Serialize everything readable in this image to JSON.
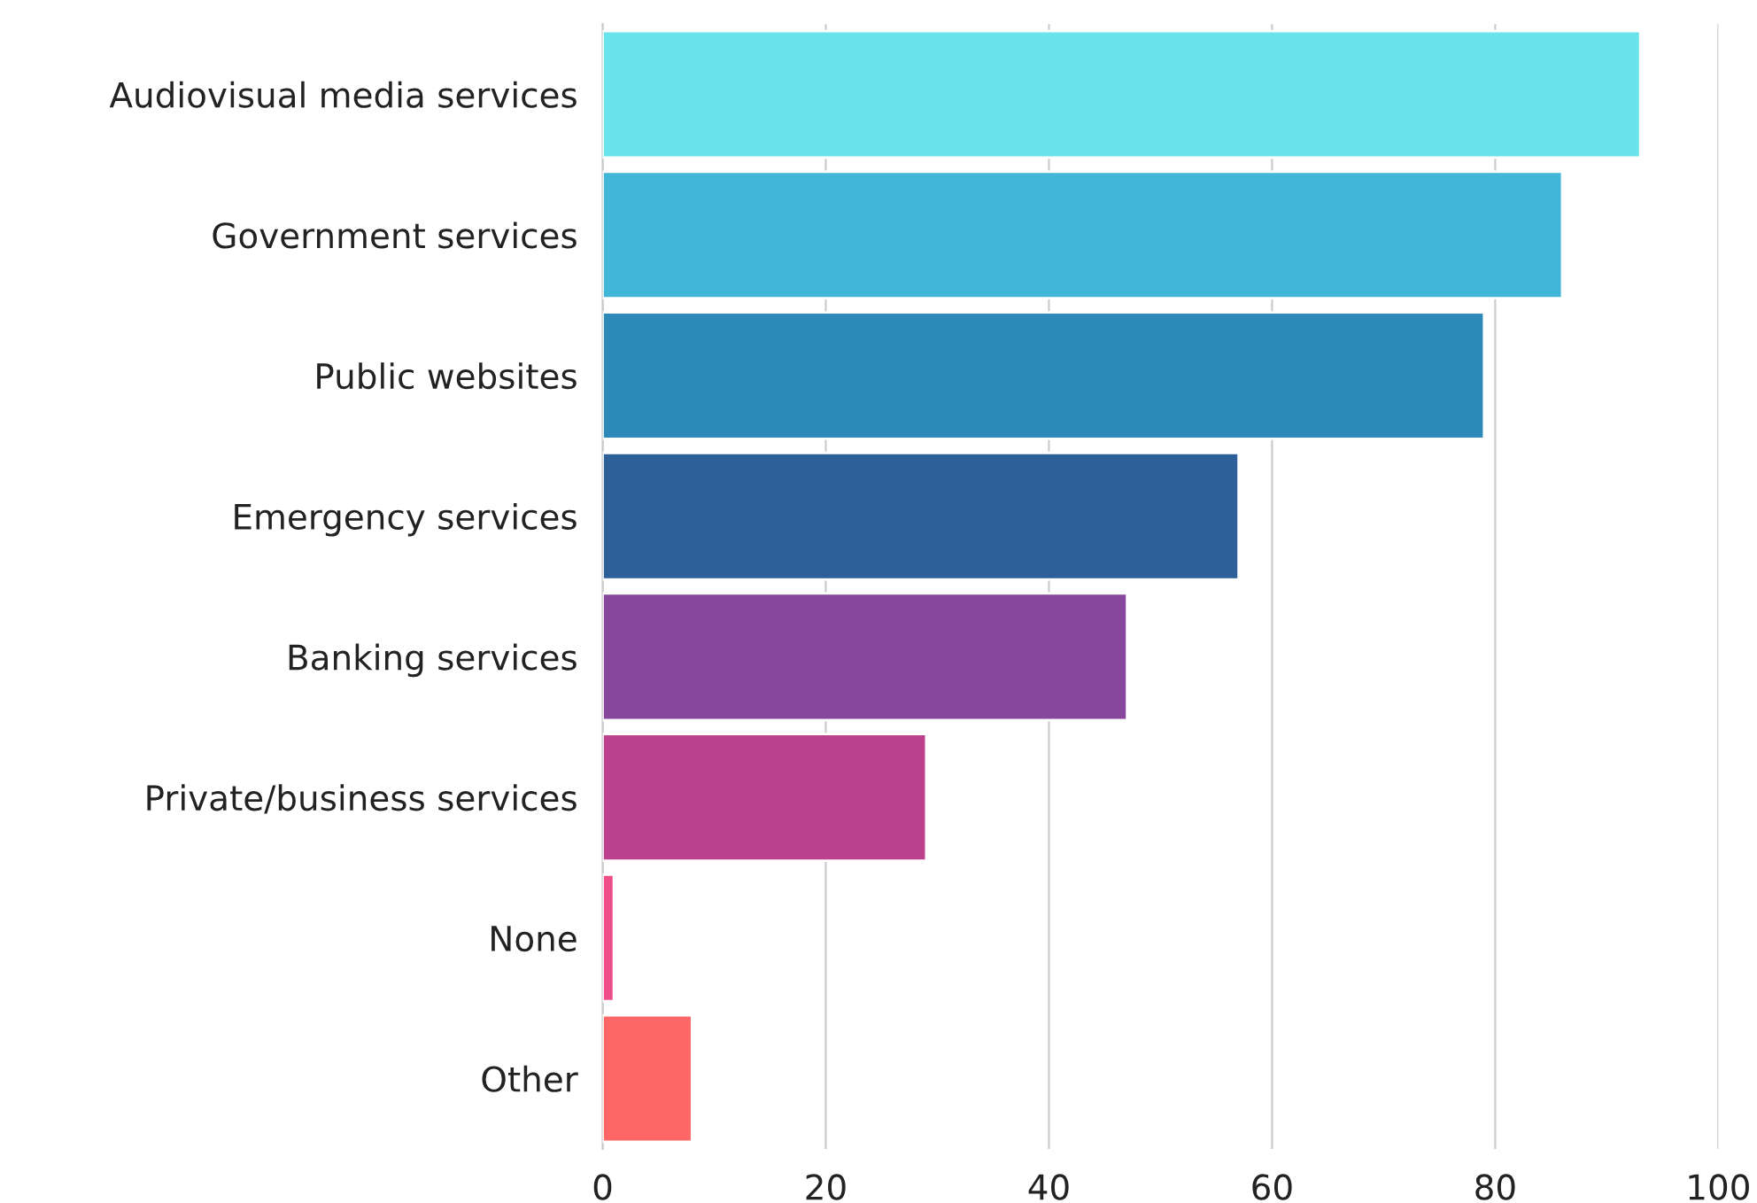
{
  "chart_data": {
    "type": "bar",
    "orientation": "horizontal",
    "categories": [
      "Audiovisual media services",
      "Government services",
      "Public websites",
      "Emergency services",
      "Banking services",
      "Private/business services",
      "None",
      "Other"
    ],
    "values": [
      93,
      86,
      79,
      57,
      47,
      29,
      1,
      8
    ],
    "colors": [
      "#68e4ea",
      "#42b6d6",
      "#2d8ab8",
      "#2d5f98",
      "#86479c",
      "#bc418c",
      "#ee4d87",
      "#ff6666"
    ],
    "xlim": [
      0,
      100
    ],
    "xticks": [
      0,
      20,
      40,
      60,
      80,
      100
    ],
    "grid": "x"
  }
}
